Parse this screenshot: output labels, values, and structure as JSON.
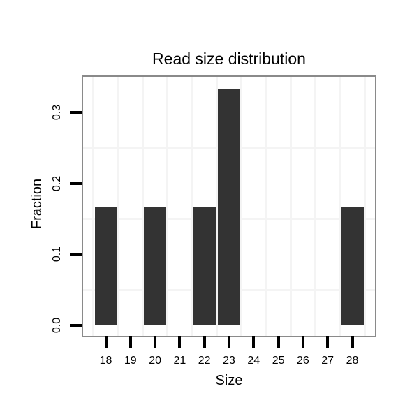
{
  "chart_data": {
    "type": "bar",
    "title": "Read size distribution",
    "xlabel": "Size",
    "ylabel": "Fraction",
    "categories": [
      "18",
      "19",
      "20",
      "21",
      "22",
      "23",
      "24",
      "25",
      "26",
      "27",
      "28"
    ],
    "values": [
      0.1667,
      0,
      0.1667,
      0,
      0.1667,
      0.3333,
      0,
      0,
      0,
      0,
      0.1667
    ],
    "ytick_labels": [
      "0.0",
      "0.1",
      "0.2",
      "0.3"
    ],
    "ytick_values": [
      0,
      0.1,
      0.2,
      0.3
    ],
    "ylim": [
      -0.015,
      0.35
    ],
    "minor_gridlines_y": [
      0.05,
      0.15,
      0.25
    ],
    "grid": "minor_only_light_gray",
    "legend": "none",
    "colors": {
      "bar": "#333333",
      "panel_border": "#8a8a8a",
      "gridline": "#f4f4f4",
      "tick": "#000000",
      "text": "#000000",
      "background": "#ffffff"
    }
  }
}
